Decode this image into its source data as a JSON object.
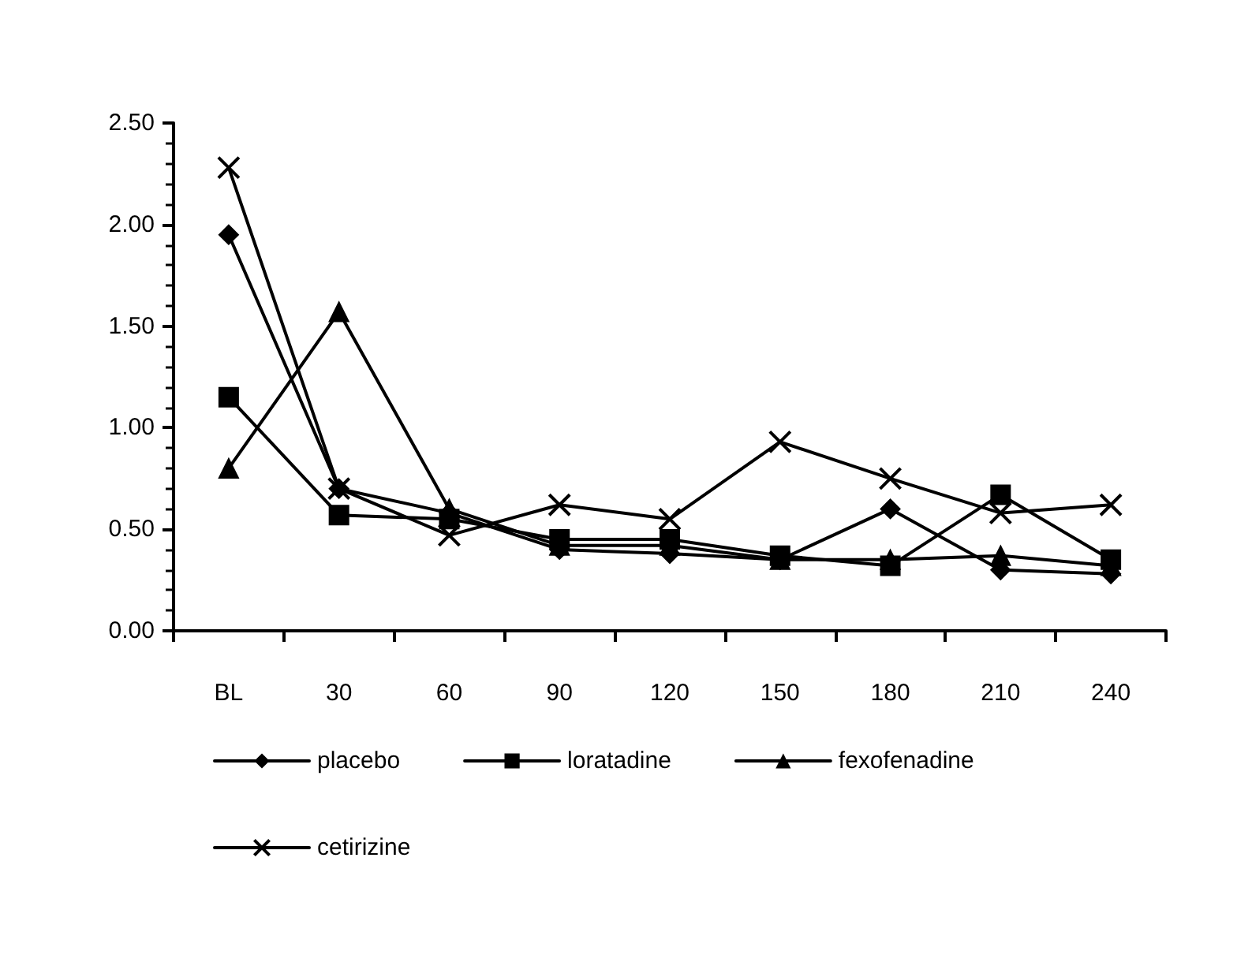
{
  "chart_data": {
    "type": "line",
    "categories": [
      "BL",
      "30",
      "60",
      "90",
      "120",
      "150",
      "180",
      "210",
      "240"
    ],
    "series": [
      {
        "name": "placebo",
        "color": "#000000",
        "marker": "diamond",
        "values": [
          1.95,
          0.7,
          0.58,
          0.4,
          0.38,
          0.35,
          0.6,
          0.3,
          0.28
        ]
      },
      {
        "name": "loratadine",
        "color": "#000000",
        "marker": "square",
        "values": [
          1.15,
          0.57,
          0.55,
          0.45,
          0.45,
          0.37,
          0.32,
          0.67,
          0.35
        ]
      },
      {
        "name": "fexofenadine",
        "color": "#000000",
        "marker": "triangle",
        "values": [
          0.8,
          1.57,
          0.6,
          0.42,
          0.42,
          0.35,
          0.35,
          0.37,
          0.32
        ]
      },
      {
        "name": "cetirizine",
        "color": "#000000",
        "marker": "cross",
        "values": [
          2.28,
          0.7,
          0.47,
          0.62,
          0.55,
          0.93,
          0.75,
          0.58,
          0.62
        ]
      }
    ],
    "ylim": [
      0,
      2.5
    ],
    "yticks": [
      {
        "value": 0,
        "label": "0.00"
      },
      {
        "value": 0.5,
        "label": "0.50"
      },
      {
        "value": 1,
        "label": "1.00"
      },
      {
        "value": 1.5,
        "label": "1.50"
      },
      {
        "value": 2,
        "label": "2.00"
      },
      {
        "value": 2.5,
        "label": "2.50"
      }
    ],
    "grid": false,
    "legend": "bottom",
    "line_style": "solid"
  }
}
